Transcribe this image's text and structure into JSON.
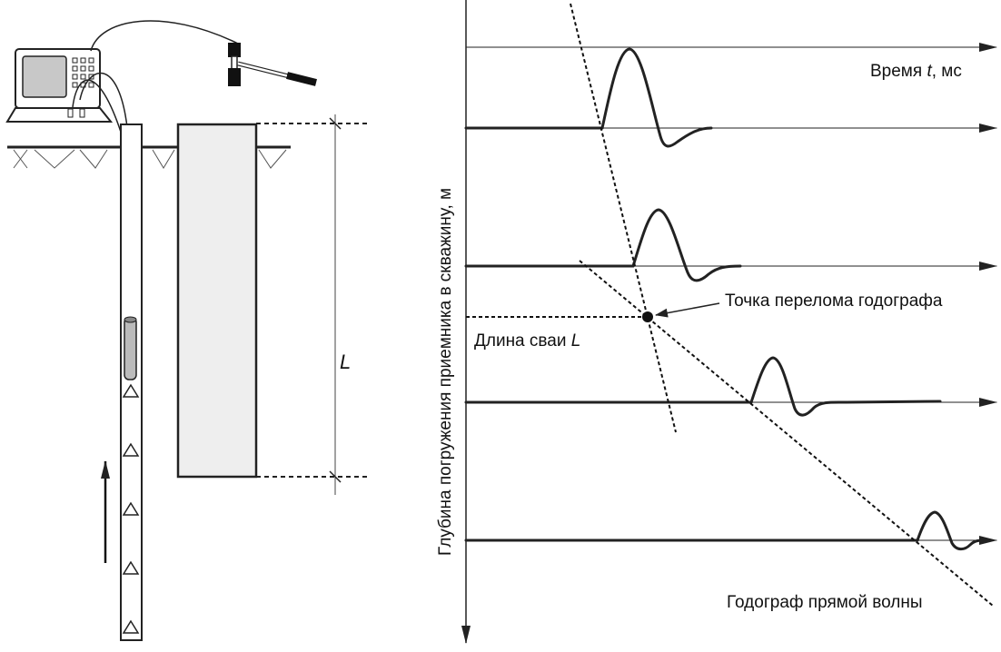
{
  "labels": {
    "time_axis": "Время",
    "time_var": "t",
    "time_unit": ", мс",
    "depth_axis": "Глубина погружения приемника в скважину, м",
    "break_point": "Точка перелома годографа",
    "pile_length": "Длина сваи",
    "pile_length_var": "L",
    "direct_wave": "Годограф прямой волны",
    "length_marker": "L"
  },
  "colors": {
    "ink": "#111111",
    "pile_fill": "#eeeeee",
    "screen_fill": "#c8c8c8",
    "probe_fill": "#bbbbbb"
  },
  "icons": [
    "laptop-icon",
    "hammer-icon",
    "receiver-probe-icon",
    "sensor-triangle-icon"
  ]
}
